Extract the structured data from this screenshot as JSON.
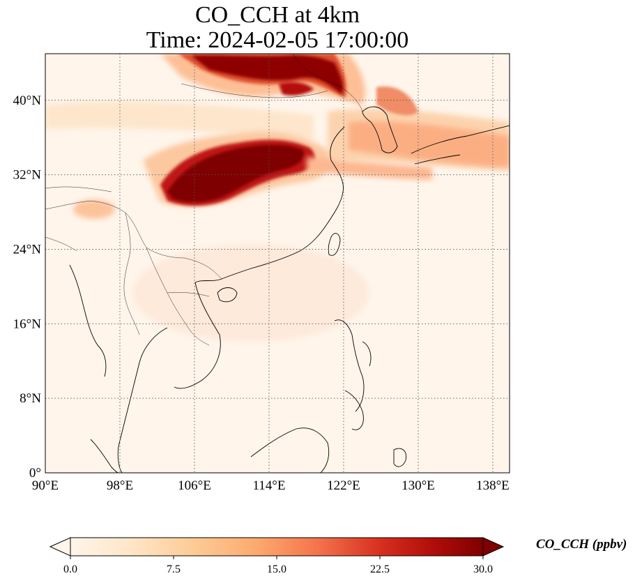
{
  "title": {
    "line1": "CO_CCH at 4km",
    "line2": "Time: 2024-02-05 17:00:00"
  },
  "map": {
    "lon_range": [
      90,
      139.8
    ],
    "lat_range": [
      0,
      45
    ],
    "x_ticks": [
      "90°E",
      "98°E",
      "106°E",
      "114°E",
      "122°E",
      "130°E",
      "138°E"
    ],
    "x_tick_values": [
      90,
      98,
      106,
      114,
      122,
      130,
      138
    ],
    "y_ticks": [
      "0°",
      "8°N",
      "16°N",
      "24°N",
      "32°N",
      "40°N"
    ],
    "y_tick_values": [
      0,
      8,
      16,
      24,
      32,
      40
    ],
    "gridlines": "dotted",
    "colormap": "OrRd",
    "background_color": "#fff5eb"
  },
  "colorbar": {
    "label": "CO_CCH (ppbv)",
    "ticks": [
      "0.0",
      "7.5",
      "15.0",
      "22.5",
      "30.0"
    ],
    "tick_values": [
      0,
      7.5,
      15,
      22.5,
      30
    ],
    "range": [
      0,
      30
    ],
    "extend": "both",
    "colors": [
      "#fff5eb",
      "#fdd49e",
      "#fdbb84",
      "#fc8d59",
      "#ef6548",
      "#d7301f",
      "#b30000",
      "#7f0000"
    ]
  }
}
